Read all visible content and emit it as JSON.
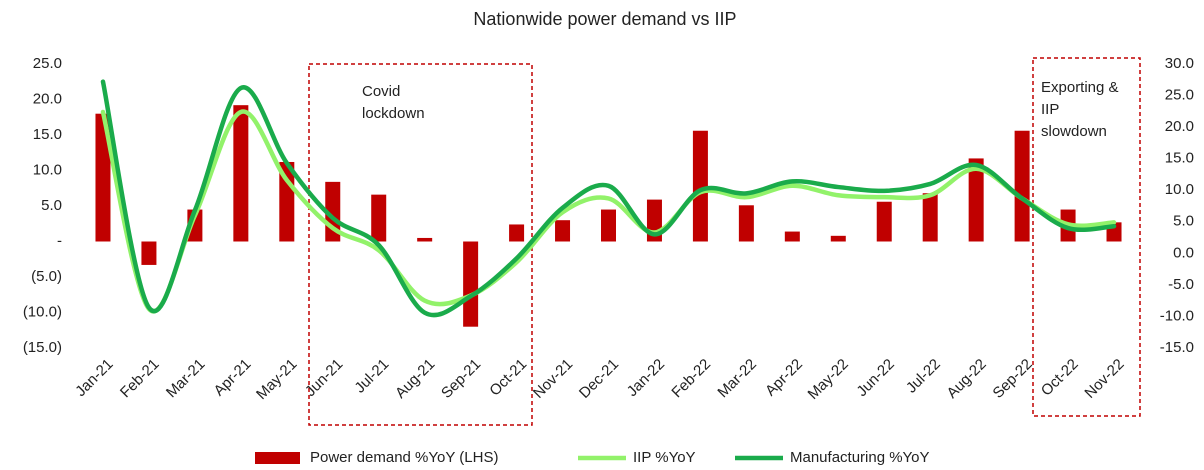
{
  "chart_data": {
    "type": "bar_line_combo",
    "title": "Nationwide power demand vs IIP",
    "categories": [
      "Jan-21",
      "Feb-21",
      "Mar-21",
      "Apr-21",
      "May-21",
      "Jun-21",
      "Jul-21",
      "Aug-21",
      "Sep-21",
      "Oct-21",
      "Nov-21",
      "Dec-21",
      "Jan-22",
      "Feb-22",
      "Mar-22",
      "Apr-22",
      "May-22",
      "Jun-22",
      "Jul-22",
      "Aug-22",
      "Sep-22",
      "Oct-22",
      "Nov-22"
    ],
    "series": [
      {
        "name": "Power demand %YoY (LHS)",
        "type": "bar",
        "color": "#c00000",
        "values": [
          18.0,
          -3.3,
          4.5,
          19.2,
          11.2,
          8.4,
          6.6,
          0.5,
          -12.0,
          2.4,
          3.0,
          4.5,
          5.9,
          15.6,
          5.1,
          1.4,
          0.8,
          5.6,
          6.8,
          11.7,
          15.6,
          4.5,
          2.7
        ]
      },
      {
        "name": "IIP %YoY",
        "type": "line",
        "axis": "y2",
        "color": "#92f26a",
        "values": [
          22.4,
          -8.8,
          6.0,
          22.4,
          11.6,
          4.0,
          0.5,
          -7.5,
          -6.7,
          -1.4,
          6.5,
          8.7,
          3.3,
          9.7,
          8.9,
          10.7,
          9.2,
          8.9,
          9.2,
          13.4,
          8.7,
          4.6,
          4.9
        ]
      },
      {
        "name": "Manufacturing %YoY",
        "type": "line",
        "axis": "y2",
        "color": "#1aab4b",
        "values": [
          27.2,
          -8.6,
          6.8,
          26.2,
          14.3,
          5.6,
          1.3,
          -9.4,
          -6.8,
          -0.8,
          7.2,
          10.7,
          3.0,
          10.0,
          9.5,
          11.4,
          10.5,
          9.9,
          11.0,
          14.0,
          8.7,
          4.0,
          4.3
        ]
      }
    ],
    "ylim": [
      -15,
      25
    ],
    "yticks": [
      {
        "value": -15,
        "label": "(15.0)"
      },
      {
        "value": -10,
        "label": "(10.0)"
      },
      {
        "value": -5,
        "label": "(5.0)"
      },
      {
        "value": 0,
        "label": "-"
      },
      {
        "value": 5,
        "label": "5.0"
      },
      {
        "value": 10,
        "label": "10.0"
      },
      {
        "value": 15,
        "label": "15.0"
      },
      {
        "value": 20,
        "label": "20.0"
      },
      {
        "value": 25,
        "label": "25.0"
      }
    ],
    "y2lim": [
      -15,
      30
    ],
    "y2ticks": [
      {
        "value": -15,
        "label": "-15.0"
      },
      {
        "value": -10,
        "label": "-10.0"
      },
      {
        "value": -5,
        "label": "-5.0"
      },
      {
        "value": 0,
        "label": "0.0"
      },
      {
        "value": 5,
        "label": "5.0"
      },
      {
        "value": 10,
        "label": "10.0"
      },
      {
        "value": 15,
        "label": "15.0"
      },
      {
        "value": 20,
        "label": "20.0"
      },
      {
        "value": 25,
        "label": "25.0"
      },
      {
        "value": 30,
        "label": "30.0"
      }
    ],
    "annotations": [
      {
        "lines": [
          "Covid",
          "lockdown"
        ]
      },
      {
        "lines": [
          "Exporting &",
          "IIP",
          "slowdown"
        ]
      }
    ],
    "grid": false,
    "legend": "bottom"
  }
}
